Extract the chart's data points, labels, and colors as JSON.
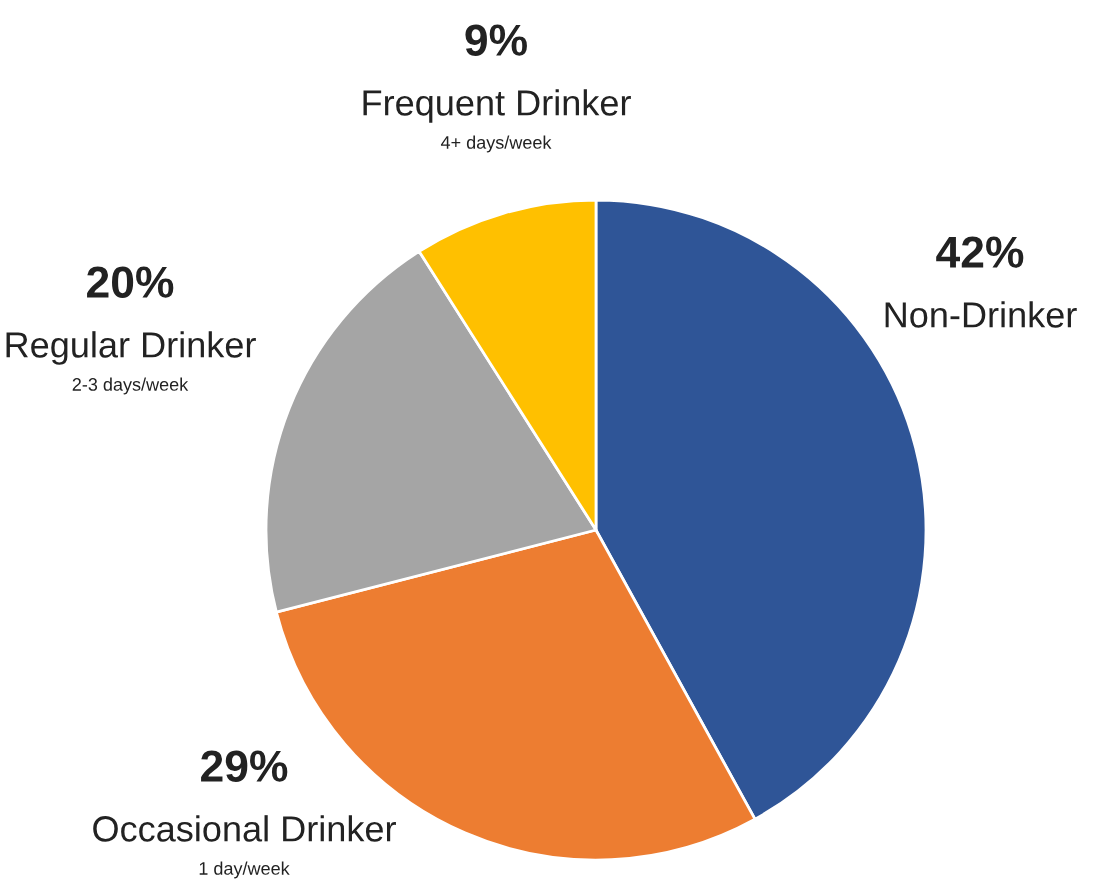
{
  "chart_data": {
    "type": "pie",
    "categories": [
      "Non-Drinker",
      "Occasional Drinker",
      "Regular Drinker",
      "Frequent Drinker"
    ],
    "values": [
      42,
      29,
      20,
      9
    ],
    "colors": [
      "#2f5597",
      "#ed7d31",
      "#a5a5a5",
      "#ffc000"
    ],
    "value_labels": [
      "42%",
      "29%",
      "20%",
      "9%"
    ],
    "annotations": [
      {
        "text": "1 day/week",
        "x": "Occasional Drinker"
      },
      {
        "text": "2-3 days/week",
        "x": "Regular Drinker"
      },
      {
        "text": "4+ days/week",
        "x": "Frequent Drinker"
      }
    ],
    "legend": false
  }
}
